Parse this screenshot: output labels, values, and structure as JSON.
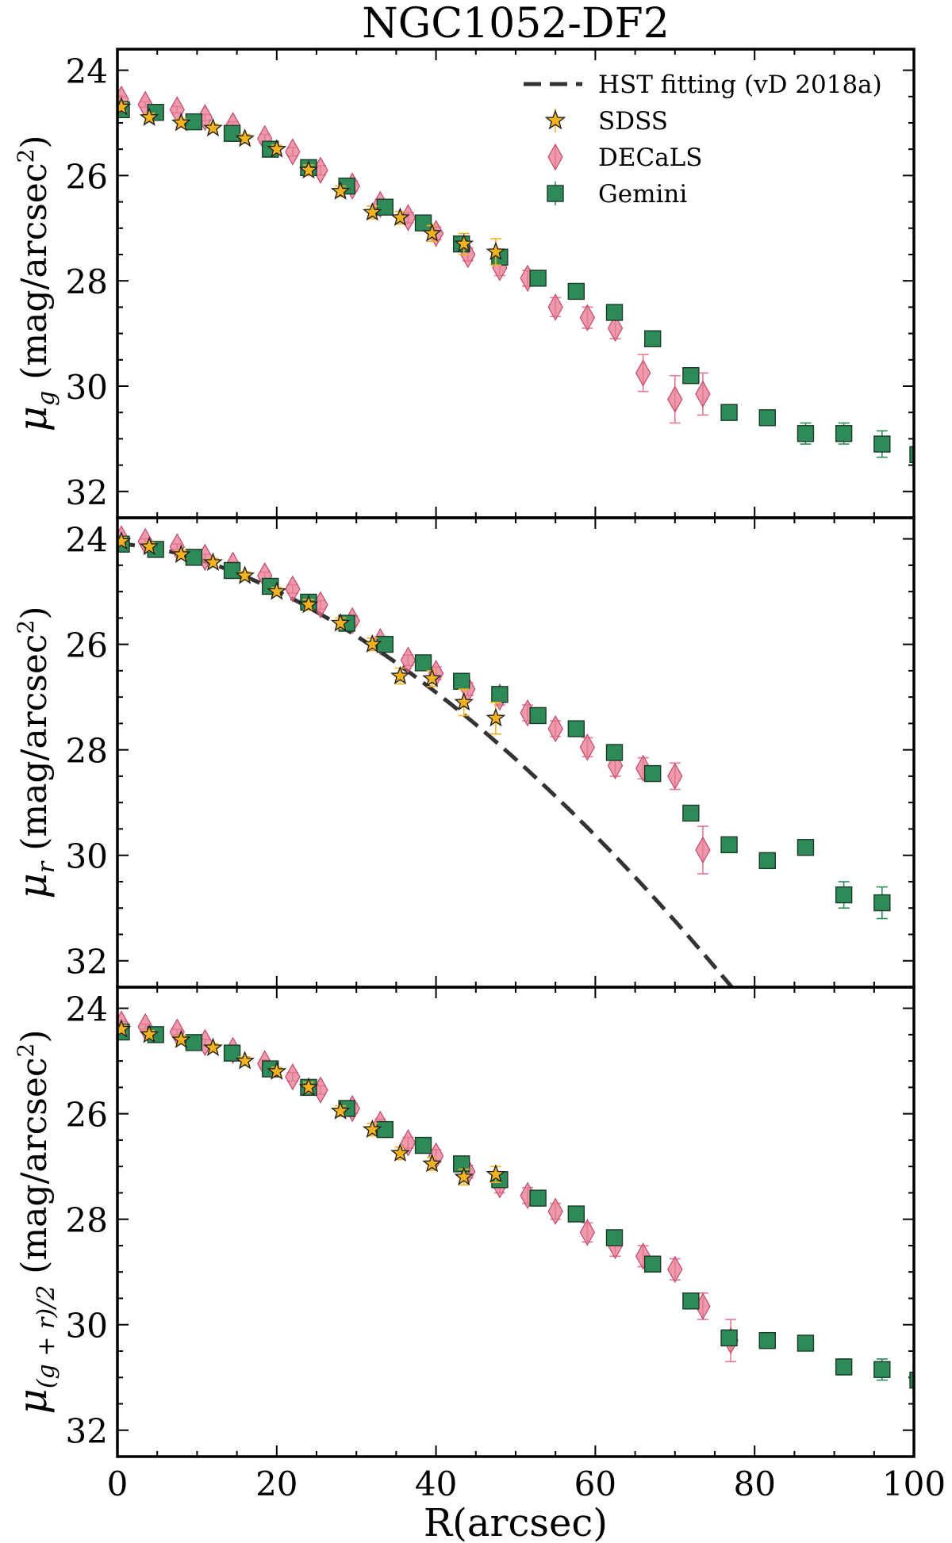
{
  "chart_data": {
    "type": "scatter",
    "title": "NGC1052-DF2",
    "xlabel": "R(arcsec)",
    "xlim": [
      0,
      100
    ],
    "ylim": [
      32.5,
      23.6
    ],
    "x_ticks": [
      "0",
      "20",
      "40",
      "60",
      "80",
      "100"
    ],
    "y_ticks": [
      "24",
      "26",
      "28",
      "30",
      "32"
    ],
    "legend": {
      "location": "top-right",
      "entries": [
        "HST fitting (vD 2018a)",
        "SDSS",
        "DECaLS",
        "Gemini"
      ]
    },
    "colors": {
      "hst": "#333333",
      "sdss": "#f5b21f",
      "decals": "#e87890",
      "gemini": "#2e8b57"
    },
    "panels": [
      {
        "name": "g-band",
        "ylabel_main": "μ",
        "ylabel_sub": "g",
        "ylabel_rest": " (mag/arcsec",
        "ylabel_sup": "2",
        "ylabel_close": ")",
        "series": {
          "sdss": {
            "x": [
              0.5,
              4,
              8,
              12,
              16,
              20,
              24,
              28,
              32,
              35.5,
              39.5,
              43.5,
              47.5
            ],
            "y": [
              24.7,
              24.9,
              25.0,
              25.1,
              25.3,
              25.5,
              25.9,
              26.3,
              26.7,
              26.8,
              27.1,
              27.3,
              27.45
            ],
            "err": [
              0.08,
              0.08,
              0.08,
              0.08,
              0.08,
              0.08,
              0.1,
              0.1,
              0.12,
              0.12,
              0.15,
              0.2,
              0.25
            ]
          },
          "decals": {
            "x": [
              0.5,
              3.5,
              7.5,
              11,
              14.5,
              18.5,
              22,
              25.5,
              29.5,
              33,
              36.5,
              40,
              44,
              48,
              51.5,
              55,
              59,
              62.5,
              66,
              70,
              73.5
            ],
            "y": [
              24.55,
              24.65,
              24.75,
              24.9,
              25.05,
              25.3,
              25.55,
              25.9,
              26.2,
              26.55,
              26.8,
              27.1,
              27.5,
              27.75,
              27.95,
              28.5,
              28.7,
              28.9,
              29.75,
              30.25,
              30.15
            ],
            "err": [
              0.05,
              0.05,
              0.06,
              0.06,
              0.07,
              0.08,
              0.08,
              0.09,
              0.1,
              0.1,
              0.1,
              0.12,
              0.12,
              0.15,
              0.15,
              0.18,
              0.2,
              0.2,
              0.35,
              0.45,
              0.4
            ]
          },
          "gemini": {
            "x": [
              0.5,
              4.8,
              9.6,
              14.4,
              19.2,
              24,
              28.8,
              33.6,
              38.4,
              43.2,
              48,
              52.8,
              57.6,
              62.4,
              67.2,
              72,
              76.8,
              81.6,
              86.4,
              91.2,
              96,
              100.5
            ],
            "y": [
              24.75,
              24.8,
              24.98,
              25.2,
              25.5,
              25.85,
              26.2,
              26.6,
              26.9,
              27.3,
              27.55,
              27.95,
              28.2,
              28.6,
              29.1,
              29.8,
              30.5,
              30.6,
              30.9,
              30.9,
              31.1,
              31.3
            ],
            "err": [
              0.05,
              0.05,
              0.05,
              0.05,
              0.05,
              0.05,
              0.06,
              0.06,
              0.07,
              0.08,
              0.08,
              0.1,
              0.1,
              0.1,
              0.1,
              0.12,
              0.12,
              0.12,
              0.2,
              0.2,
              0.25,
              0.3
            ]
          },
          "hst": null
        }
      },
      {
        "name": "r-band",
        "ylabel_main": "μ",
        "ylabel_sub": "r",
        "ylabel_rest": " (mag/arcsec",
        "ylabel_sup": "2",
        "ylabel_close": ")",
        "series": {
          "sdss": {
            "x": [
              0.5,
              4,
              8,
              12,
              16,
              20,
              24,
              28,
              32,
              35.5,
              39.5,
              43.5,
              47.5
            ],
            "y": [
              24.05,
              24.15,
              24.3,
              24.45,
              24.7,
              25.0,
              25.25,
              25.6,
              26.0,
              26.6,
              26.65,
              27.1,
              27.4
            ],
            "err": [
              0.08,
              0.08,
              0.08,
              0.08,
              0.08,
              0.08,
              0.1,
              0.1,
              0.12,
              0.15,
              0.15,
              0.25,
              0.3
            ]
          },
          "decals": {
            "x": [
              0.5,
              3.5,
              7.5,
              11,
              14.5,
              18.5,
              22,
              25.5,
              29.5,
              33,
              36.5,
              40,
              44,
              48,
              51.5,
              55,
              59,
              62.5,
              66,
              70,
              73.5
            ],
            "y": [
              24.0,
              24.05,
              24.15,
              24.35,
              24.5,
              24.7,
              24.95,
              25.25,
              25.55,
              25.95,
              26.3,
              26.55,
              26.85,
              27.0,
              27.3,
              27.6,
              27.95,
              28.3,
              28.35,
              28.5,
              29.9
            ],
            "err": [
              0.05,
              0.05,
              0.05,
              0.06,
              0.06,
              0.07,
              0.08,
              0.08,
              0.09,
              0.1,
              0.1,
              0.12,
              0.12,
              0.15,
              0.15,
              0.15,
              0.18,
              0.2,
              0.2,
              0.25,
              0.45
            ]
          },
          "gemini": {
            "x": [
              0.5,
              4.8,
              9.6,
              14.4,
              19.2,
              24,
              28.8,
              33.6,
              38.4,
              43.2,
              48,
              52.8,
              57.6,
              62.4,
              67.2,
              72,
              76.8,
              81.6,
              86.4,
              91.2,
              96
            ],
            "y": [
              24.1,
              24.2,
              24.35,
              24.6,
              24.9,
              25.2,
              25.6,
              26.0,
              26.35,
              26.7,
              26.95,
              27.35,
              27.6,
              28.05,
              28.45,
              29.2,
              29.8,
              30.1,
              29.85,
              30.75,
              30.9
            ],
            "err": [
              0.05,
              0.05,
              0.05,
              0.05,
              0.05,
              0.05,
              0.06,
              0.06,
              0.07,
              0.08,
              0.08,
              0.1,
              0.1,
              0.1,
              0.1,
              0.12,
              0.12,
              0.12,
              0.12,
              0.25,
              0.3
            ]
          },
          "hst": {
            "x_start": 0,
            "x_end": 82,
            "mu0": 24.1,
            "n": 0.6,
            "re": 22.6
          }
        }
      },
      {
        "name": "g+r-band",
        "ylabel_main": "μ",
        "ylabel_sub": "(g + r)/2",
        "ylabel_rest": " (mag/arcsec",
        "ylabel_sup": "2",
        "ylabel_close": ")",
        "series": {
          "sdss": {
            "x": [
              0.5,
              4,
              8,
              12,
              16,
              20,
              24,
              28,
              32,
              35.5,
              39.5,
              43.5,
              47.5
            ],
            "y": [
              24.4,
              24.5,
              24.6,
              24.75,
              25.0,
              25.2,
              25.5,
              25.95,
              26.3,
              26.75,
              26.95,
              27.2,
              27.15
            ],
            "err": [
              0.08,
              0.08,
              0.08,
              0.08,
              0.08,
              0.08,
              0.1,
              0.1,
              0.12,
              0.12,
              0.12,
              0.15,
              0.15
            ]
          },
          "decals": {
            "x": [
              0.5,
              3.5,
              7.5,
              11,
              14.5,
              18.5,
              22,
              25.5,
              29.5,
              33,
              36.5,
              40,
              44,
              48,
              51.5,
              55,
              59,
              62.5,
              66,
              70,
              73.5,
              77
            ],
            "y": [
              24.3,
              24.35,
              24.45,
              24.65,
              24.8,
              25.05,
              25.3,
              25.55,
              25.9,
              26.2,
              26.55,
              26.8,
              27.1,
              27.35,
              27.55,
              27.85,
              28.25,
              28.5,
              28.7,
              28.95,
              29.65,
              30.3
            ],
            "err": [
              0.05,
              0.05,
              0.05,
              0.06,
              0.06,
              0.07,
              0.08,
              0.08,
              0.09,
              0.1,
              0.1,
              0.12,
              0.12,
              0.15,
              0.15,
              0.15,
              0.18,
              0.2,
              0.2,
              0.2,
              0.25,
              0.4
            ]
          },
          "gemini": {
            "x": [
              0.5,
              4.8,
              9.6,
              14.4,
              19.2,
              24,
              28.8,
              33.6,
              38.4,
              43.2,
              48,
              52.8,
              57.6,
              62.4,
              67.2,
              72,
              76.8,
              81.6,
              86.4,
              91.2,
              96,
              100.5
            ],
            "y": [
              24.45,
              24.5,
              24.65,
              24.85,
              25.15,
              25.5,
              25.9,
              26.3,
              26.6,
              26.95,
              27.25,
              27.6,
              27.9,
              28.35,
              28.85,
              29.55,
              30.25,
              30.3,
              30.35,
              30.8,
              30.85,
              31.05
            ],
            "err": [
              0.05,
              0.05,
              0.05,
              0.05,
              0.05,
              0.05,
              0.06,
              0.06,
              0.07,
              0.08,
              0.08,
              0.1,
              0.1,
              0.1,
              0.1,
              0.12,
              0.12,
              0.12,
              0.12,
              0.15,
              0.2,
              0.25
            ]
          },
          "hst": null
        }
      }
    ]
  }
}
